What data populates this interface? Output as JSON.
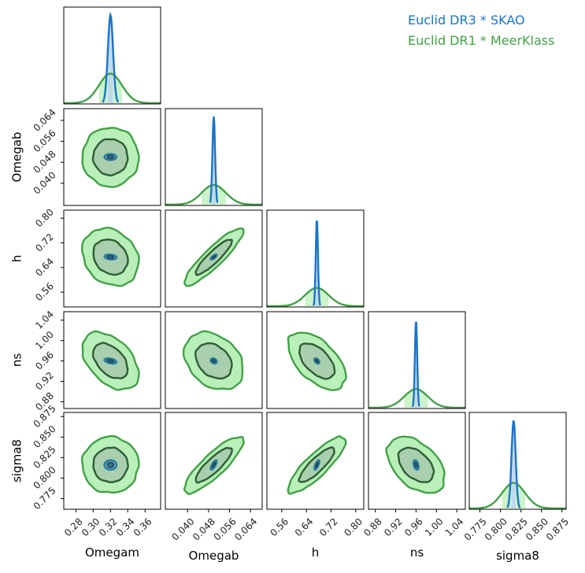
{
  "chart_data": {
    "type": "corner",
    "parameters": [
      {
        "name": "Omegam",
        "label": "Omegam",
        "range": [
          0.266,
          0.378
        ],
        "ticks": [
          "0.28",
          "0.30",
          "0.32",
          "0.34",
          "0.36"
        ],
        "tick_values": [
          0.28,
          0.3,
          0.32,
          0.34,
          0.36
        ]
      },
      {
        "name": "Omegab",
        "label": "Omegab",
        "range": [
          0.0315,
          0.0685
        ],
        "ticks": [
          "0.040",
          "0.048",
          "0.056",
          "0.064"
        ],
        "tick_values": [
          0.04,
          0.048,
          0.056,
          0.064
        ]
      },
      {
        "name": "h",
        "label": "h",
        "range": [
          0.512,
          0.826
        ],
        "ticks": [
          "0.56",
          "0.64",
          "0.72",
          "0.80"
        ],
        "tick_values": [
          0.56,
          0.64,
          0.72,
          0.8
        ]
      },
      {
        "name": "ns",
        "label": "ns",
        "range": [
          0.8667,
          1.0567
        ],
        "ticks": [
          "0.88",
          "0.92",
          "0.96",
          "1.00",
          "1.04"
        ],
        "tick_values": [
          0.88,
          0.92,
          0.96,
          1.0,
          1.04
        ]
      },
      {
        "name": "sigma8",
        "label": "sigma8",
        "range": [
          0.762,
          0.88
        ],
        "ticks": [
          "0.775",
          "0.800",
          "0.825",
          "0.850",
          "0.875"
        ],
        "tick_values": [
          0.775,
          0.8,
          0.825,
          0.85,
          0.875
        ]
      }
    ],
    "series": [
      {
        "name": "Euclid DR3 * SKAO",
        "color": "#1a73c9",
        "fill": "#bcd6ee",
        "mean": [
          0.32,
          0.05,
          0.674,
          0.96,
          0.816
        ],
        "sigma": [
          0.003,
          0.0005,
          0.0035,
          0.0022,
          0.0025
        ],
        "contour_scale": [
          1.0,
          1.0,
          1.0,
          1.0,
          1.0
        ]
      },
      {
        "name": "Euclid DR1 * MeerKlass",
        "color": "#43a047",
        "fill": "#b9f0b9",
        "inner_fill": "#a9cfae",
        "inner_stroke": "#2e5e33",
        "mean": [
          0.32,
          0.05,
          0.674,
          0.96,
          0.816
        ],
        "sigma": [
          0.0133,
          0.0046,
          0.038,
          0.023,
          0.014
        ],
        "correlations": [
          [
            0,
            1,
            0.0
          ],
          [
            0,
            2,
            -0.2
          ],
          [
            0,
            3,
            -0.45
          ],
          [
            0,
            4,
            0.0
          ],
          [
            1,
            2,
            0.9
          ],
          [
            1,
            3,
            -0.3
          ],
          [
            1,
            4,
            0.85
          ],
          [
            2,
            3,
            -0.55
          ],
          [
            2,
            4,
            0.85
          ],
          [
            3,
            4,
            -0.45
          ]
        ]
      }
    ],
    "legend": "top-right",
    "xlabels": [
      "Omegam",
      "Omegab",
      "h",
      "ns",
      "sigma8"
    ],
    "ylabels": [
      "Omegab",
      "h",
      "ns",
      "sigma8"
    ]
  },
  "legend": {
    "entries": [
      {
        "label": "Euclid DR3 * SKAO",
        "color": "#1a73c9"
      },
      {
        "label": "Euclid DR1 * MeerKlass",
        "color": "#43a047"
      }
    ]
  }
}
